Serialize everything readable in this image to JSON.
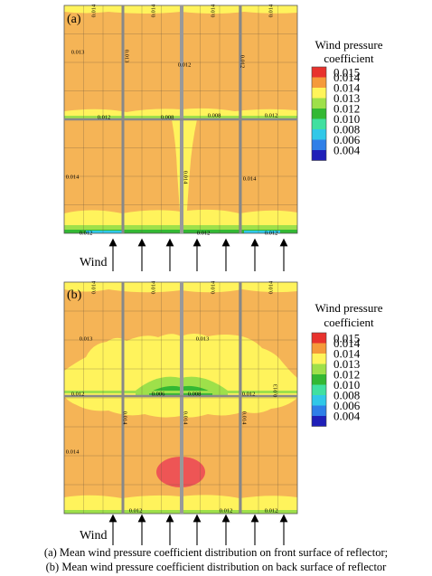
{
  "panels": [
    {
      "label": "(a)",
      "wind_label": "Wind",
      "legend": {
        "title_line1": "Wind pressure",
        "title_line2": "coefficient",
        "levels": [
          {
            "value": "0.015",
            "color": "#e8322d"
          },
          {
            "value": "0.014",
            "color": "#f59a3a"
          },
          {
            "value": "0.014",
            "color": "#fff45a"
          },
          {
            "value": "0.013",
            "color": "#9ee04a"
          },
          {
            "value": "0.012",
            "color": "#33b833"
          },
          {
            "value": "0.010",
            "color": "#40e0a0"
          },
          {
            "value": "0.008",
            "color": "#30c8e8"
          },
          {
            "value": "0.006",
            "color": "#2f7fe8"
          },
          {
            "value": "0.004",
            "color": "#1f1fb8"
          }
        ]
      },
      "contour_labels": [
        "0.014",
        "0.014",
        "0.014",
        "0.014",
        "0.013",
        "0.013",
        "0.012",
        "0.012",
        "0.012",
        "0.008",
        "0.008",
        "0.012",
        "0.014",
        "0.014",
        "0.014",
        "0.012",
        "0.012",
        "0.012"
      ]
    },
    {
      "label": "(b)",
      "wind_label": "Wind",
      "legend": {
        "title_line1": "Wind pressure",
        "title_line2": "coefficient",
        "levels": [
          {
            "value": "0.015",
            "color": "#e8322d"
          },
          {
            "value": "0.014",
            "color": "#f59a3a"
          },
          {
            "value": "0.014",
            "color": "#fff45a"
          },
          {
            "value": "0.013",
            "color": "#9ee04a"
          },
          {
            "value": "0.012",
            "color": "#33b833"
          },
          {
            "value": "0.010",
            "color": "#40e0a0"
          },
          {
            "value": "0.008",
            "color": "#30c8e8"
          },
          {
            "value": "0.006",
            "color": "#2f7fe8"
          },
          {
            "value": "0.004",
            "color": "#1f1fb8"
          }
        ]
      },
      "contour_labels": [
        "0.014",
        "0.014",
        "0.014",
        "0.014",
        "0.013",
        "0.013",
        "0.012",
        "0.006",
        "0.008",
        "0.012",
        "0.013",
        "0.014",
        "0.014",
        "0.014",
        "0.014",
        "0.012",
        "0.012",
        "0.012"
      ]
    }
  ],
  "caption_a": "(a) Mean wind pressure coefficient distribution on front surface of reflector;",
  "caption_b": "(b)  Mean  wind pressure coefficient distribution on back surface of reflector"
}
